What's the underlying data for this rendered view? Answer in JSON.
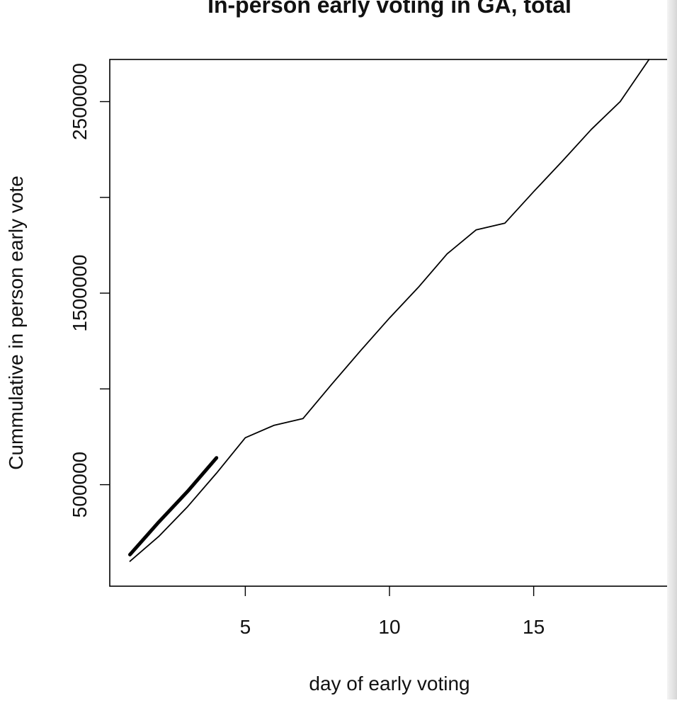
{
  "chart_data": {
    "type": "line",
    "title": "In-person early voting in GA, total",
    "xlabel": "day of early voting",
    "ylabel": "Cummulative in person early vote",
    "xlim": [
      0.3,
      19.7
    ],
    "ylim": [
      -30000,
      2720000
    ],
    "x_ticks": [
      5,
      10,
      15
    ],
    "y_ticks": [
      500000,
      1000000,
      1500000,
      2000000,
      2500000
    ],
    "y_tick_labels": [
      {
        "value": 500000,
        "label": "500000"
      },
      {
        "value": 1500000,
        "label": "1500000"
      },
      {
        "value": 2500000,
        "label": "2500000"
      }
    ],
    "grid": false,
    "series": [
      {
        "style": "thin",
        "color": "#000000",
        "x": [
          1,
          2,
          3,
          4,
          5,
          6,
          7,
          8,
          9,
          10,
          11,
          12,
          13,
          14,
          15,
          16,
          17,
          18,
          19
        ],
        "y": [
          100000,
          230000,
          385000,
          560000,
          745000,
          810000,
          845000,
          1025000,
          1200000,
          1370000,
          1530000,
          1705000,
          1830000,
          1865000,
          2030000,
          2190000,
          2355000,
          2500000,
          2720000
        ]
      },
      {
        "style": "thick",
        "color": "#000000",
        "x": [
          1,
          2,
          3,
          4
        ],
        "y": [
          135000,
          305000,
          465000,
          640000
        ]
      }
    ]
  }
}
